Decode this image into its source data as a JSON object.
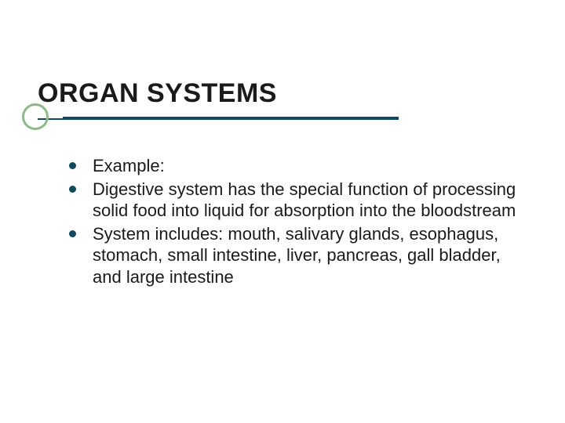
{
  "title": "ORGAN SYSTEMS",
  "accent_color": "#0e4a5b",
  "circle_border_color": "#8eb98b",
  "bullet_color": "#0e4a5b",
  "text_color": "#1a1a1a",
  "background_color": "#ffffff",
  "title_fontsize": 34,
  "body_fontsize": 22,
  "bullets": [
    {
      "text": "Example:"
    },
    {
      "text": "Digestive system has the special function of processing solid food into liquid for absorption into the bloodstream"
    },
    {
      "text": "System includes: mouth, salivary glands, esophagus, stomach, small intestine, liver, pancreas, gall bladder, and large intestine"
    }
  ]
}
